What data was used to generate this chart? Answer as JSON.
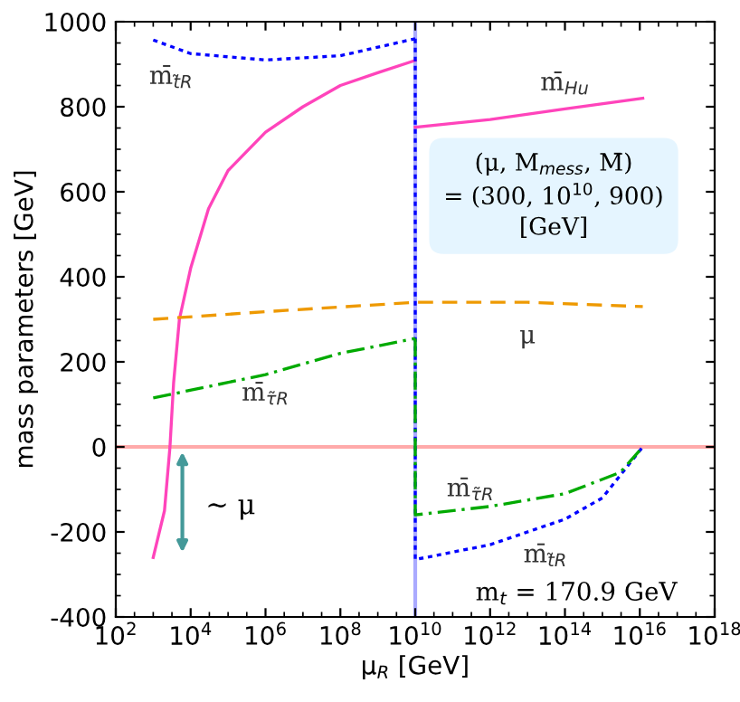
{
  "chart_data": {
    "type": "line",
    "xlabel": "μ$_{R}$ [GeV]",
    "ylabel": "mass parameters [GeV]",
    "log": "x",
    "grid": false,
    "legend": false,
    "marker": "none",
    "xlim": [
      100,
      1e+18
    ],
    "xticks": [
      {
        "value": 100,
        "label": "10$^{2}$"
      },
      {
        "value": 10000.0,
        "label": "10$^{4}$"
      },
      {
        "value": 1000000.0,
        "label": "10$^{6}$"
      },
      {
        "value": 100000000.0,
        "label": "10$^{8}$"
      },
      {
        "value": 10000000000.0,
        "label": "10$^{10}$"
      },
      {
        "value": 1000000000000.0,
        "label": "10$^{12}$"
      },
      {
        "value": 100000000000000.0,
        "label": "10$^{14}$"
      },
      {
        "value": 1e+16,
        "label": "10$^{16}$"
      },
      {
        "value": 1e+18,
        "label": "10$^{18}$"
      }
    ],
    "ylim": [
      -400,
      1000
    ],
    "yticks": [
      {
        "value": -400,
        "label": "-400"
      },
      {
        "value": -200,
        "label": "-200"
      },
      0,
      200,
      400,
      600,
      800,
      1000
    ],
    "series": [
      {
        "color": "#ff44bb",
        "line_style": "solid",
        "x": [
          1000.0,
          2000.0,
          2800.0,
          3500.0,
          5000.0,
          10000.0,
          30000.0,
          100000.0,
          1000000.0,
          10000000.0,
          100000000.0,
          1000000000.0,
          10000000000.0
        ],
        "values": [
          -260,
          -150,
          0,
          150,
          300,
          420,
          560,
          650,
          740,
          800,
          850,
          880,
          909
        ]
      },
      {
        "name": "m̄$_{Hu}$",
        "color": "#ff44bb",
        "line_style": "solid",
        "x": [
          10000000000.0,
          1000000000000.0,
          100000000000000.0,
          1.2e+16
        ],
        "values": [
          752,
          770,
          795,
          820
        ]
      },
      {
        "name": "m̄$_{t̃R}$",
        "color": "#0000ff",
        "line_style": "dotted",
        "x": [
          1000.0,
          10000.0,
          1000000.0,
          100000000.0,
          10000000000.0
        ],
        "values": [
          957,
          925,
          910,
          920,
          960
        ]
      },
      {
        "name": "m̄$_{t̃R}$",
        "color": "#0000ff",
        "line_style": "dotted",
        "x": [
          10000000000.0,
          10000000000.0,
          1000000000000.0,
          100000000000000.0,
          1000000000000000.0,
          1.2e+16
        ],
        "values": [
          960,
          -265,
          -230,
          -170,
          -120,
          0
        ]
      },
      {
        "name": "μ",
        "color": "#ee9900",
        "line_style": "dashed",
        "x": [
          1000.0,
          1000000.0,
          10000000000.0,
          10000000000000.0,
          1.2e+16
        ],
        "values": [
          300,
          318,
          340,
          340,
          330
        ]
      },
      {
        "name": "m̄$_{τ̃R}$",
        "color": "#00aa00",
        "line_style": "dashdot",
        "x": [
          1000.0,
          1000000.0,
          100000000.0,
          10000000000.0
        ],
        "values": [
          115,
          170,
          220,
          255
        ]
      },
      {
        "name": "m̄$_{τ̃R}$",
        "color": "#00aa00",
        "line_style": "dashdot",
        "x": [
          10000000000.0,
          10000000000.0,
          1000000000000.0,
          100000000000000.0,
          3000000000000000.0,
          1.2e+16
        ],
        "values": [
          255,
          -160,
          -140,
          -110,
          -60,
          0
        ]
      }
    ],
    "ref_lines": [
      {
        "axis": "y",
        "value": 0,
        "color": "#ffaaaa",
        "line_style": "solid"
      },
      {
        "axis": "x",
        "value": 10000000000.0,
        "color": "#aaaaff",
        "line_style": "solid"
      }
    ],
    "annotations": [
      "∼ μ",
      "(μ, M$_{mess}$, M̄)\n= (300, 10$^{10}$, 900)\n[GeV]",
      "m$_{t}$ = 170.9 GeV"
    ]
  }
}
